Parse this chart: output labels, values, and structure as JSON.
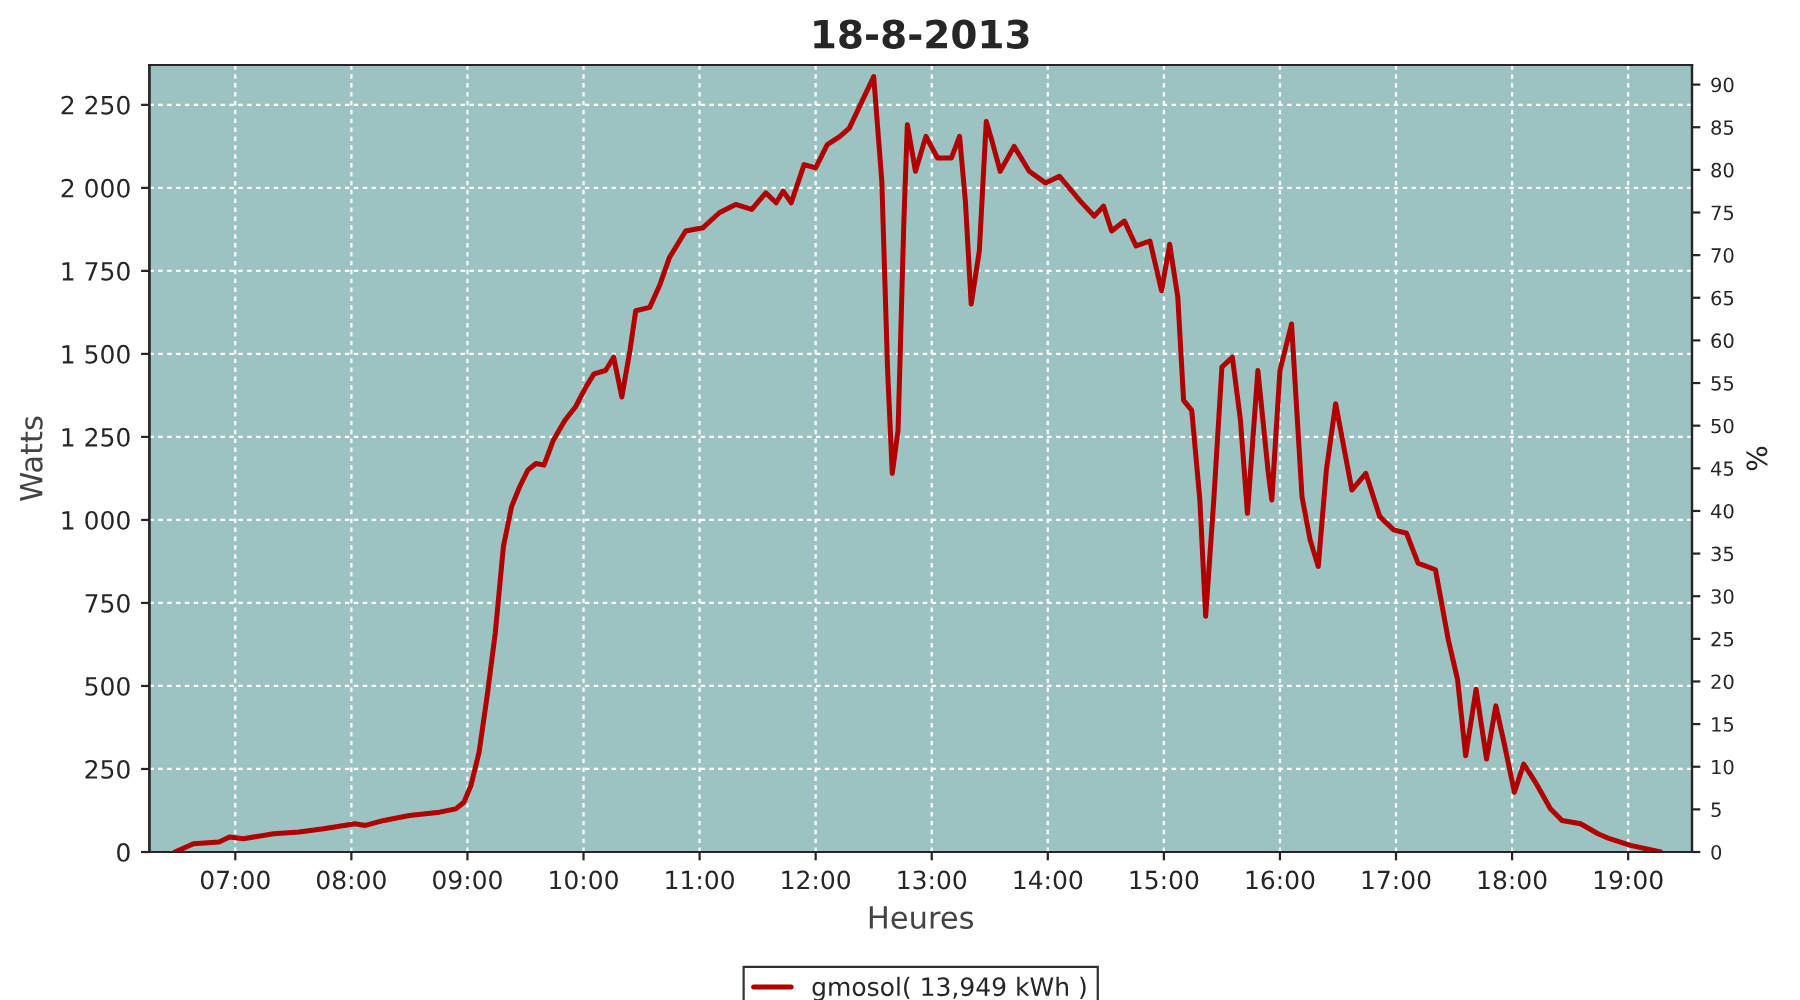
{
  "chart_data": {
    "type": "line",
    "title": "18-8-2013",
    "xlabel": "Heures",
    "ylabel": "Watts",
    "y2label": "%",
    "xlim": [
      6.26,
      19.55
    ],
    "xticks": [
      {
        "value": 7,
        "label": "07:00"
      },
      {
        "value": 8,
        "label": "08:00"
      },
      {
        "value": 9,
        "label": "09:00"
      },
      {
        "value": 10,
        "label": "10:00"
      },
      {
        "value": 11,
        "label": "11:00"
      },
      {
        "value": 12,
        "label": "12:00"
      },
      {
        "value": 13,
        "label": "13:00"
      },
      {
        "value": 14,
        "label": "14:00"
      },
      {
        "value": 15,
        "label": "15:00"
      },
      {
        "value": 16,
        "label": "16:00"
      },
      {
        "value": 17,
        "label": "17:00"
      },
      {
        "value": 18,
        "label": "18:00"
      },
      {
        "value": 19,
        "label": "19:00"
      }
    ],
    "ylim": [
      0,
      2370
    ],
    "yticks": [
      0,
      250,
      500,
      750,
      {
        "value": 1000,
        "label": "1 000"
      },
      {
        "value": 1250,
        "label": "1 250"
      },
      {
        "value": 1500,
        "label": "1 500"
      },
      {
        "value": 1750,
        "label": "1 750"
      },
      {
        "value": 2000,
        "label": "2 000"
      },
      {
        "value": 2250,
        "label": "2 250"
      }
    ],
    "y2lim": [
      0,
      92.3
    ],
    "y2ticks": [
      0,
      5,
      10,
      15,
      20,
      25,
      30,
      35,
      40,
      45,
      50,
      55,
      60,
      65,
      70,
      75,
      80,
      85,
      90
    ],
    "grid": true,
    "legend": "bottom",
    "marker": "none",
    "line_style": "solid",
    "series": [
      {
        "name": "gmosol( 13,949 kWh )",
        "color": "#b00000",
        "x": [
          6.48,
          6.64,
          6.86,
          6.95,
          7.07,
          7.33,
          7.55,
          7.76,
          8.03,
          8.12,
          8.28,
          8.5,
          8.76,
          8.9,
          8.97,
          9.03,
          9.1,
          9.17,
          9.24,
          9.31,
          9.38,
          9.45,
          9.52,
          9.59,
          9.66,
          9.74,
          9.84,
          9.93,
          10.02,
          10.09,
          10.19,
          10.26,
          10.33,
          10.4,
          10.45,
          10.57,
          10.66,
          10.74,
          10.88,
          11.03,
          11.17,
          11.31,
          11.45,
          11.57,
          11.66,
          11.72,
          11.79,
          11.9,
          12.0,
          12.1,
          12.21,
          12.29,
          12.5,
          12.57,
          12.62,
          12.66,
          12.71,
          12.76,
          12.79,
          12.86,
          12.95,
          13.05,
          13.17,
          13.24,
          13.29,
          13.34,
          13.41,
          13.47,
          13.52,
          13.59,
          13.71,
          13.84,
          13.98,
          14.1,
          14.28,
          14.4,
          14.48,
          14.55,
          14.66,
          14.76,
          14.88,
          14.98,
          15.05,
          15.12,
          15.17,
          15.24,
          15.31,
          15.36,
          15.43,
          15.5,
          15.59,
          15.66,
          15.72,
          15.81,
          15.9,
          15.93,
          16.0,
          16.1,
          16.19,
          16.26,
          16.33,
          16.4,
          16.48,
          16.62,
          16.74,
          16.86,
          16.98,
          17.09,
          17.19,
          17.34,
          17.45,
          17.53,
          17.6,
          17.69,
          17.78,
          17.86,
          17.93,
          18.02,
          18.1,
          18.21,
          18.33,
          18.43,
          18.59,
          18.74,
          18.84,
          19.02,
          19.28
        ],
        "values": [
          0,
          25,
          30,
          45,
          40,
          55,
          60,
          70,
          85,
          80,
          95,
          110,
          120,
          130,
          150,
          200,
          300,
          470,
          660,
          920,
          1040,
          1100,
          1150,
          1170,
          1165,
          1240,
          1300,
          1340,
          1400,
          1440,
          1450,
          1490,
          1370,
          1510,
          1630,
          1640,
          1710,
          1790,
          1870,
          1880,
          1925,
          1950,
          1935,
          1985,
          1955,
          1990,
          1955,
          2070,
          2060,
          2130,
          2155,
          2180,
          2335,
          2020,
          1450,
          1140,
          1270,
          1900,
          2190,
          2050,
          2155,
          2090,
          2090,
          2155,
          1960,
          1650,
          1810,
          2200,
          2140,
          2050,
          2125,
          2050,
          2015,
          2035,
          1960,
          1915,
          1945,
          1870,
          1900,
          1825,
          1840,
          1690,
          1830,
          1670,
          1360,
          1330,
          1060,
          710,
          1060,
          1460,
          1490,
          1300,
          1020,
          1450,
          1140,
          1060,
          1450,
          1590,
          1070,
          940,
          860,
          1150,
          1350,
          1090,
          1140,
          1010,
          970,
          960,
          870,
          850,
          640,
          520,
          290,
          490,
          280,
          440,
          330,
          180,
          265,
          205,
          130,
          95,
          85,
          55,
          40,
          20,
          0
        ]
      }
    ]
  }
}
